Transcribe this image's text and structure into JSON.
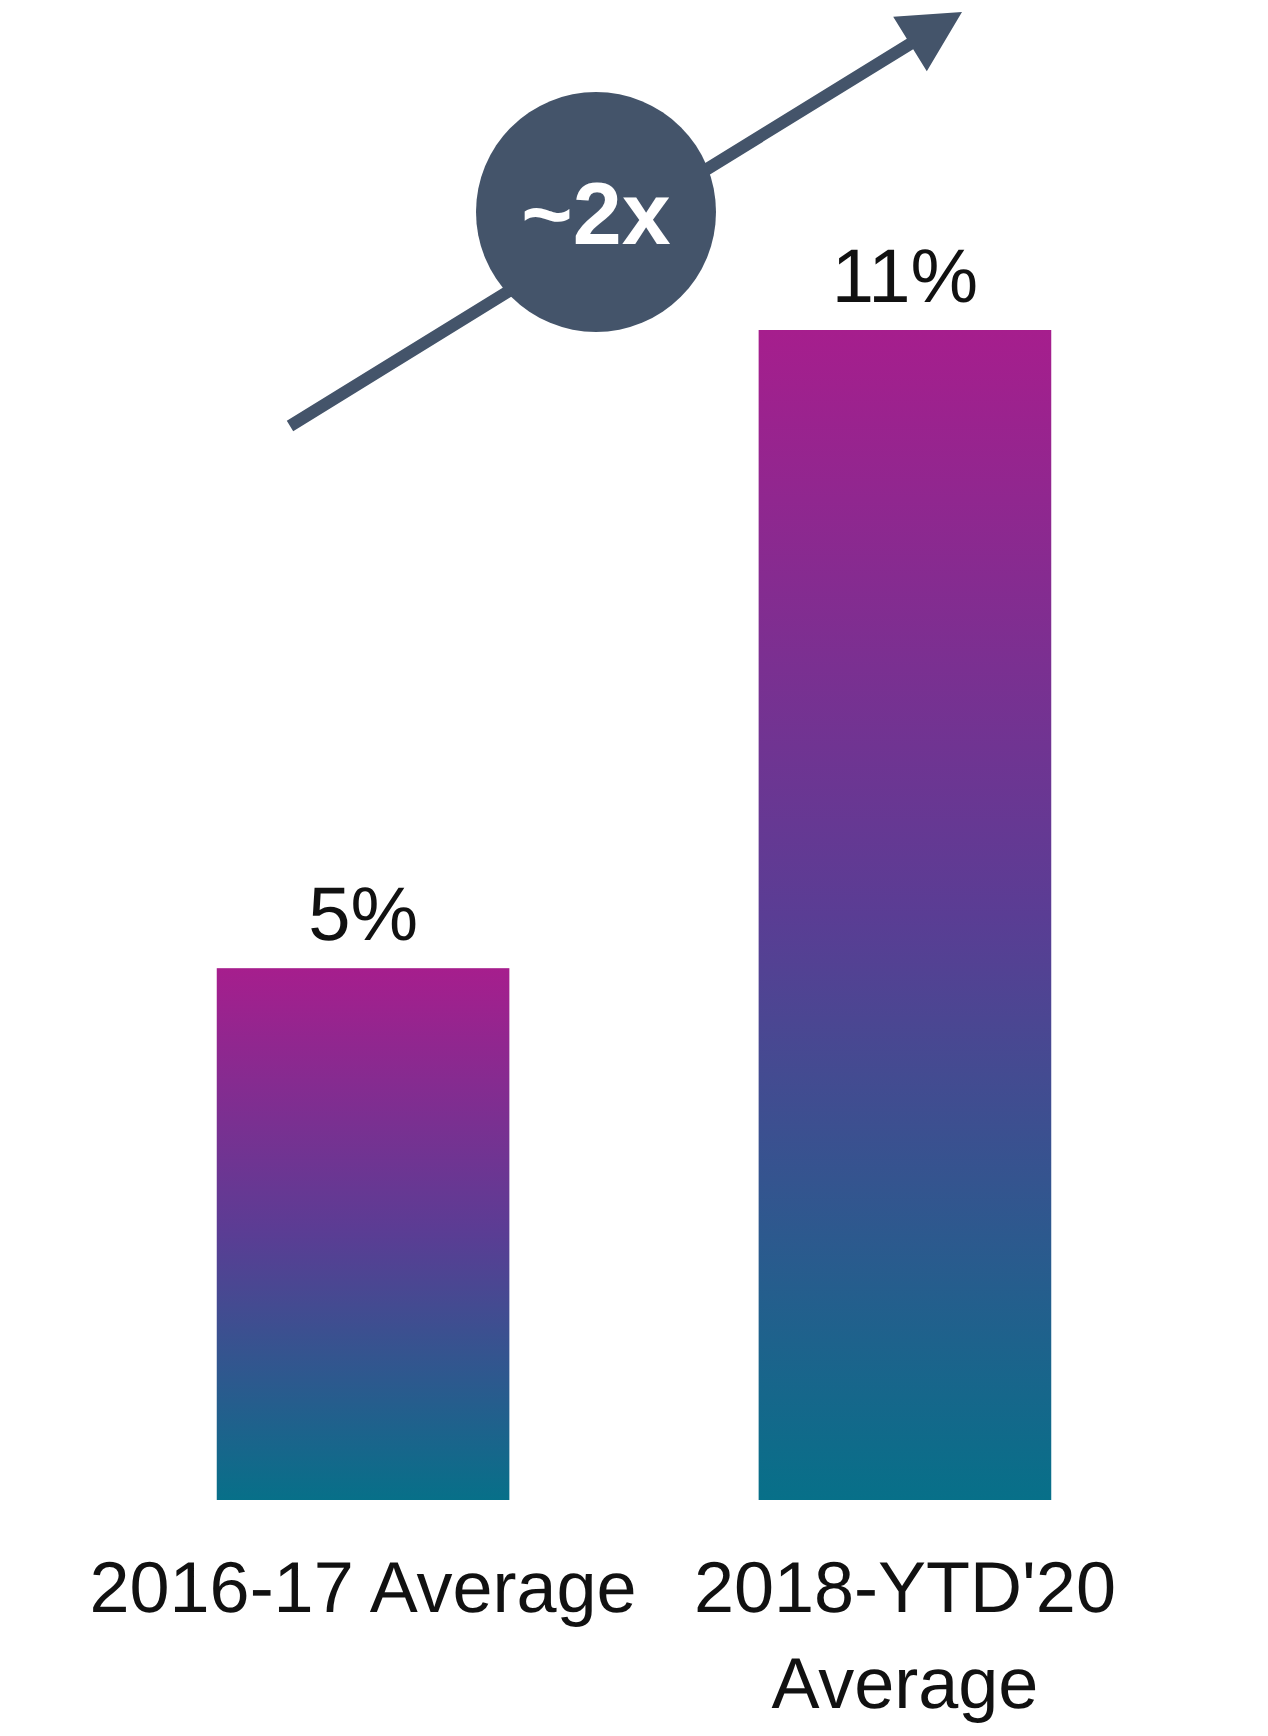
{
  "chart_data": {
    "type": "bar",
    "categories": [
      "2016-17 Average",
      "2018-YTD'20 Average"
    ],
    "values": [
      5,
      11
    ],
    "value_labels": [
      "5%",
      "11%"
    ],
    "color": "#a61e8d",
    "annotations": [
      "~2x"
    ]
  }
}
